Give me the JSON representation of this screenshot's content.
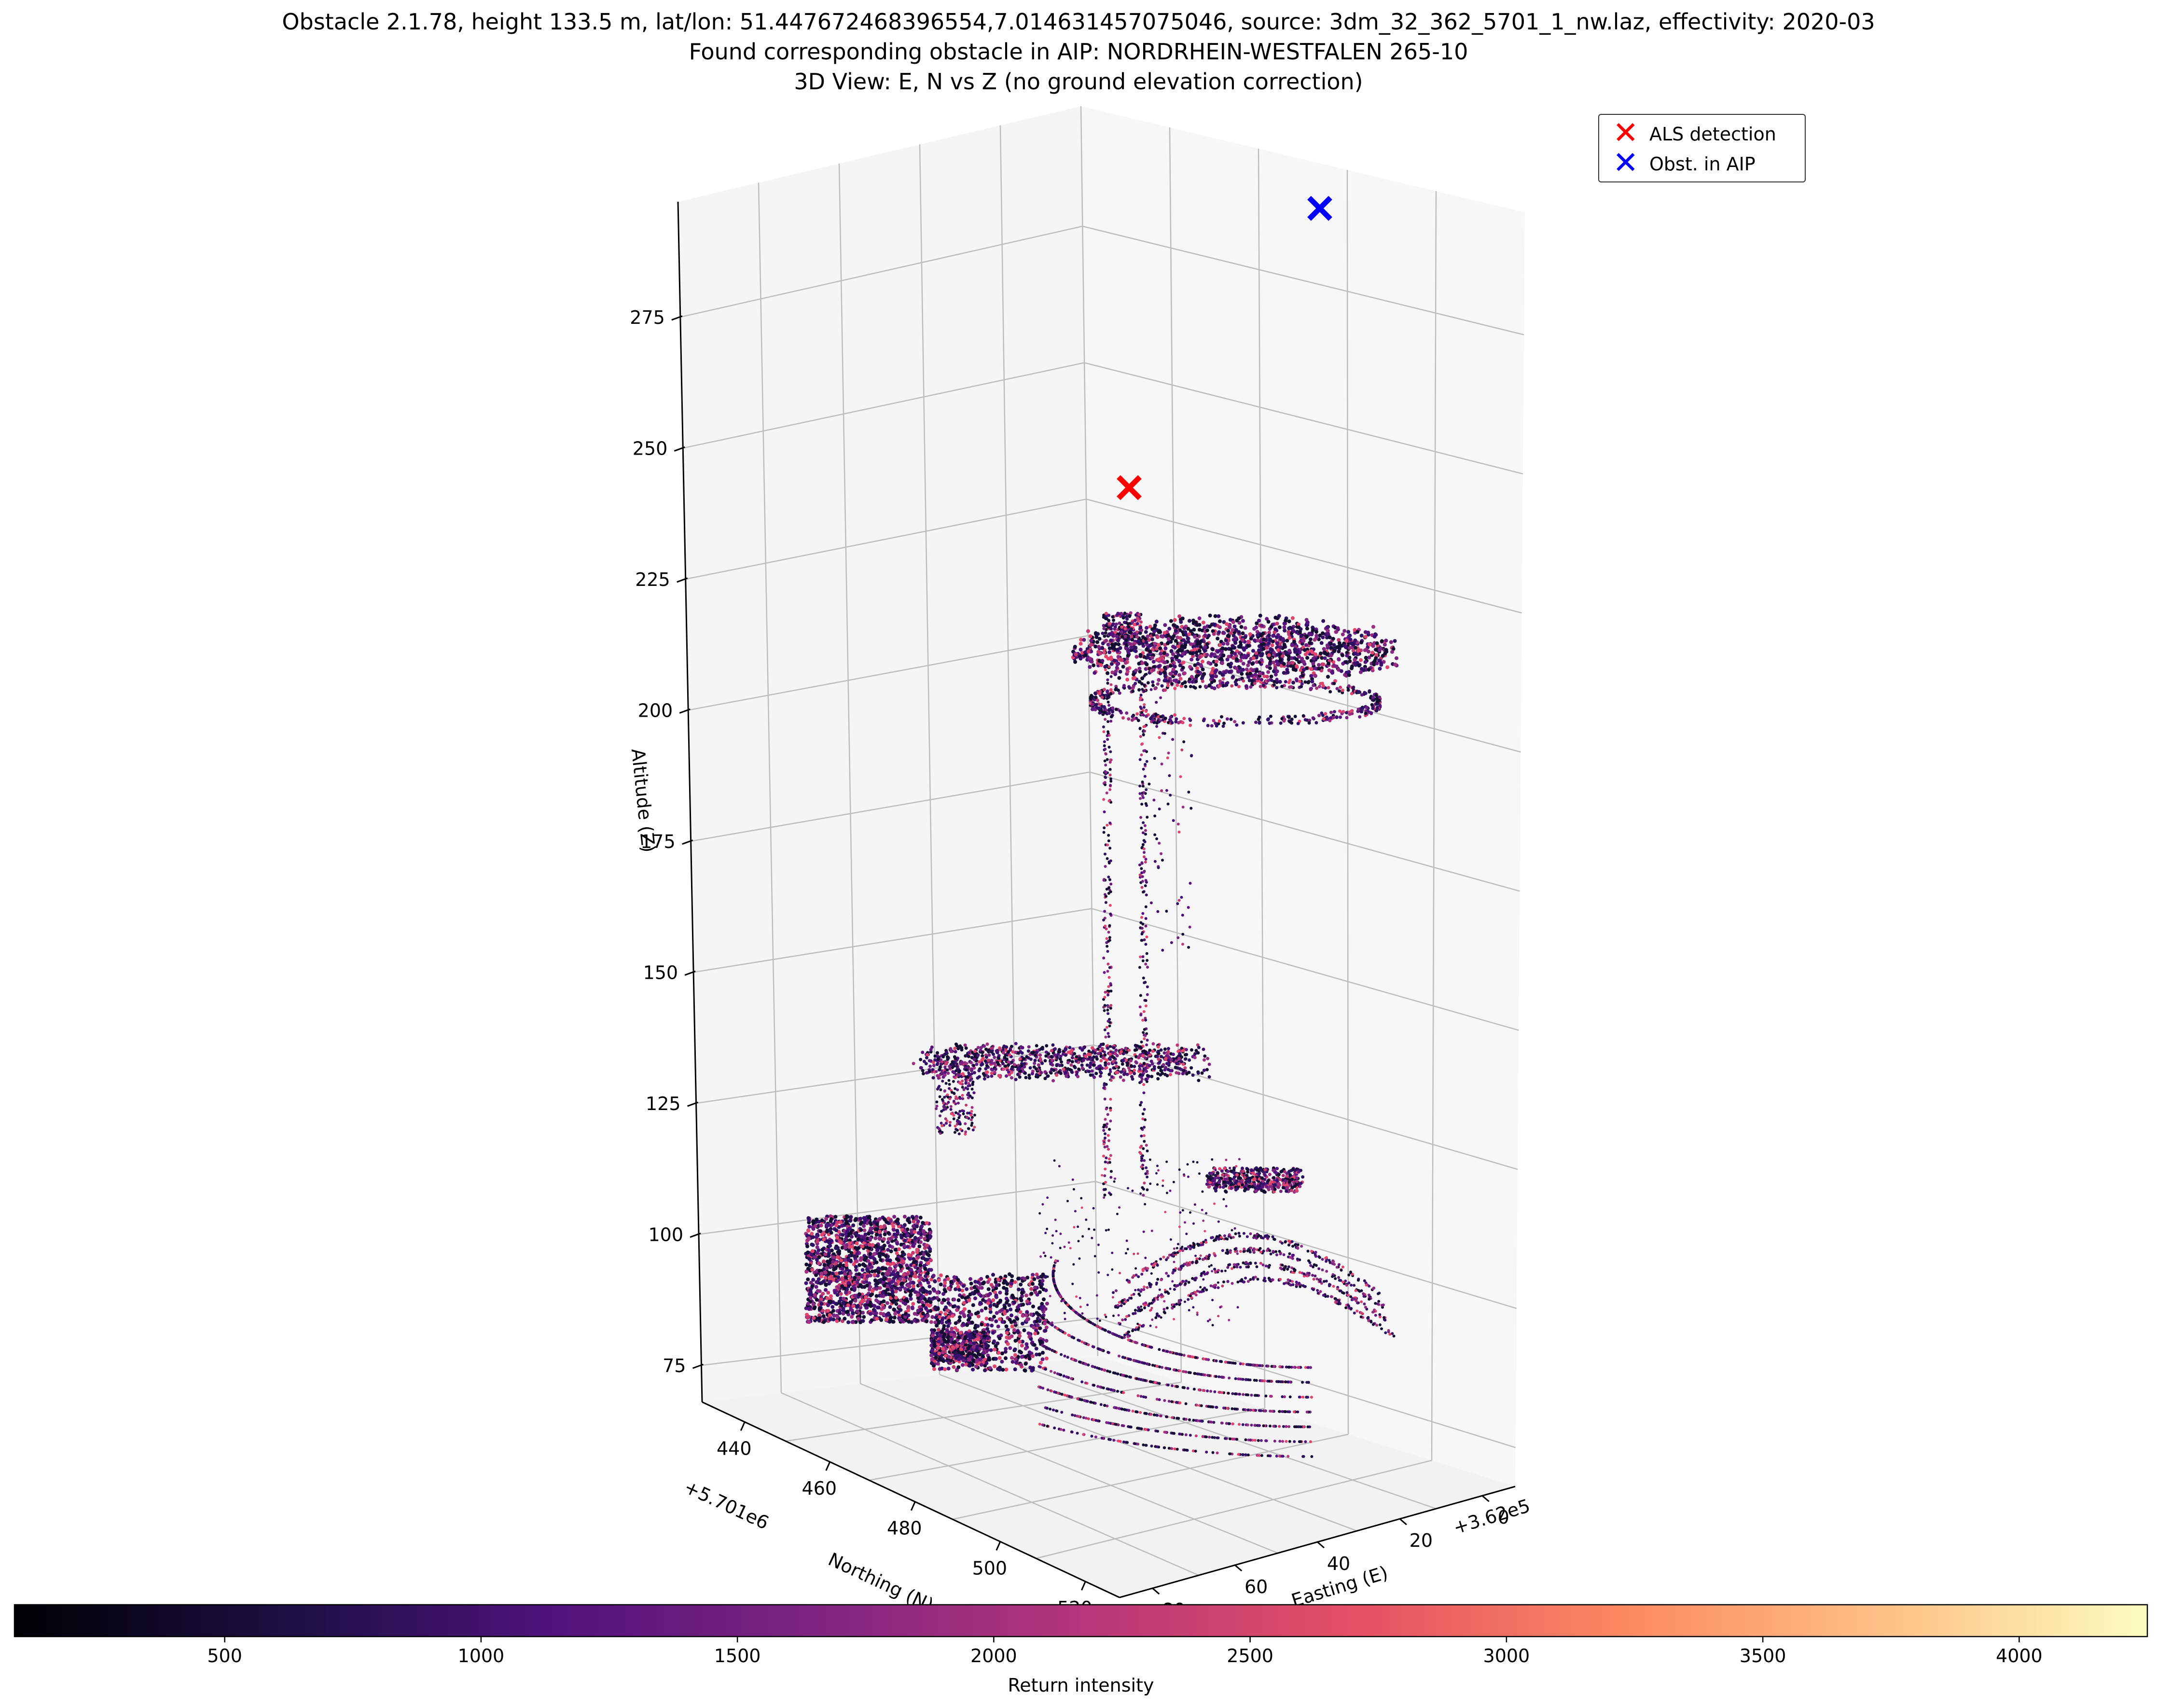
{
  "title_lines": [
    "Obstacle 2.1.78, height 133.5 m, lat/lon: 51.447672468396554,7.014631457075046, source: 3dm_32_362_5701_1_nw.laz, effectivity: 2020-03",
    "Found corresponding obstacle in AIP: NORDRHEIN-WESTFALEN 265-10",
    "3D View: E, N vs Z (no ground elevation correction)"
  ],
  "legend": {
    "items": [
      {
        "label": "ALS detection",
        "marker": "✕",
        "color": "#ff0000"
      },
      {
        "label": "Obst. in AIP",
        "marker": "✕",
        "color": "#0000ff"
      }
    ]
  },
  "axes": {
    "z_label": "Altitude (Z)",
    "z_ticks": [
      "75",
      "100",
      "125",
      "150",
      "175",
      "200",
      "225",
      "250",
      "275"
    ],
    "n_label": "Northing (N)",
    "n_offset": "+5.701e6",
    "n_ticks": [
      "440",
      "460",
      "480",
      "500",
      "520"
    ],
    "e_label": "Easting (E)",
    "e_offset": "+3.62e5",
    "e_ticks": [
      "0",
      "20",
      "40",
      "60",
      "80"
    ]
  },
  "colorbar": {
    "label": "Return intensity",
    "ticks": [
      "500",
      "1000",
      "1500",
      "2000",
      "2500",
      "3000",
      "3500",
      "4000"
    ],
    "range": [
      90,
      4250
    ],
    "colormap": "magma"
  },
  "chart_data": {
    "type": "scatter",
    "projection": "3d",
    "x_axis": "Easting (E)",
    "y_axis": "Northing (N)",
    "z_axis": "Altitude (Z)",
    "zlim": [
      68,
      297
    ],
    "ylim": [
      430,
      528
    ],
    "xlim": [
      -8,
      88
    ],
    "markers": [
      {
        "name": "ALS detection",
        "z": 228,
        "color": "#ff0000"
      },
      {
        "name": "Obst. in AIP",
        "z": 288,
        "color": "#0000ff"
      }
    ],
    "point_cloud": {
      "color_by": "Return intensity",
      "intensity_range": [
        90,
        4250
      ],
      "typical_intensity": [
        500,
        2400
      ],
      "structures": [
        "tower-head-disc",
        "tower-shaft",
        "lower-building-platform",
        "ground-rings",
        "trees"
      ]
    },
    "grid": true
  }
}
